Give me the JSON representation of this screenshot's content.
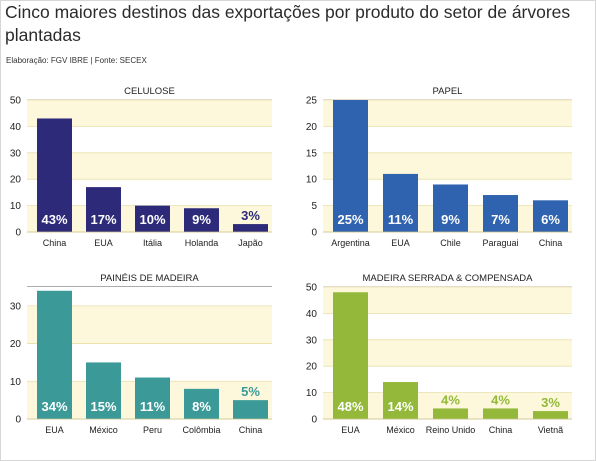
{
  "header": {
    "title": "Cinco maiores destinos das exportações por produto do setor de árvores plantadas",
    "credit": "Elaboração: FGV IBRE | Fonte: SECEX"
  },
  "chart_data": [
    {
      "type": "bar",
      "title": "CELULOSE",
      "categories": [
        "China",
        "EUA",
        "Itália",
        "Holanda",
        "Japão"
      ],
      "values": [
        43,
        17,
        10,
        9,
        3
      ],
      "data_labels": [
        "43%",
        "17%",
        "10%",
        "9%",
        "3%"
      ],
      "ylim": [
        0,
        50
      ],
      "yticks": [
        0,
        10,
        20,
        30,
        40,
        50
      ],
      "color": "#2e2a7a",
      "label_inside_color": "#ffffff",
      "label_outside_color": "#2e2a7a"
    },
    {
      "type": "bar",
      "title": "PAPEL",
      "categories": [
        "Argentina",
        "EUA",
        "Chile",
        "Paraguai",
        "China"
      ],
      "values": [
        25,
        11,
        9,
        7,
        6
      ],
      "data_labels": [
        "25%",
        "11%",
        "9%",
        "7%",
        "6%"
      ],
      "ylim": [
        0,
        25
      ],
      "yticks": [
        0,
        5,
        10,
        15,
        20,
        25
      ],
      "color": "#2f63b0",
      "label_inside_color": "#ffffff",
      "label_outside_color": "#2f63b0"
    },
    {
      "type": "bar",
      "title": "PAINÉIS DE MADEIRA",
      "categories": [
        "EUA",
        "México",
        "Peru",
        "Colômbia",
        "China"
      ],
      "values": [
        34,
        15,
        11,
        8,
        5
      ],
      "data_labels": [
        "34%",
        "15%",
        "11%",
        "8%",
        "5%"
      ],
      "ylim": [
        0,
        35
      ],
      "yticks": [
        0,
        10,
        20,
        30
      ],
      "color": "#3b9a98",
      "label_inside_color": "#ffffff",
      "label_outside_color": "#3b9a98"
    },
    {
      "type": "bar",
      "title": "MADEIRA SERRADA & COMPENSADA",
      "categories": [
        "EUA",
        "México",
        "Reino Unido",
        "China",
        "Vietnã"
      ],
      "values": [
        48,
        14,
        4,
        4,
        3
      ],
      "data_labels": [
        "48%",
        "14%",
        "4%",
        "4%",
        "3%"
      ],
      "ylim": [
        0,
        50
      ],
      "yticks": [
        0,
        10,
        20,
        30,
        40,
        50
      ],
      "color": "#93b83a",
      "label_inside_color": "#ffffff",
      "label_outside_color": "#93b83a"
    }
  ]
}
